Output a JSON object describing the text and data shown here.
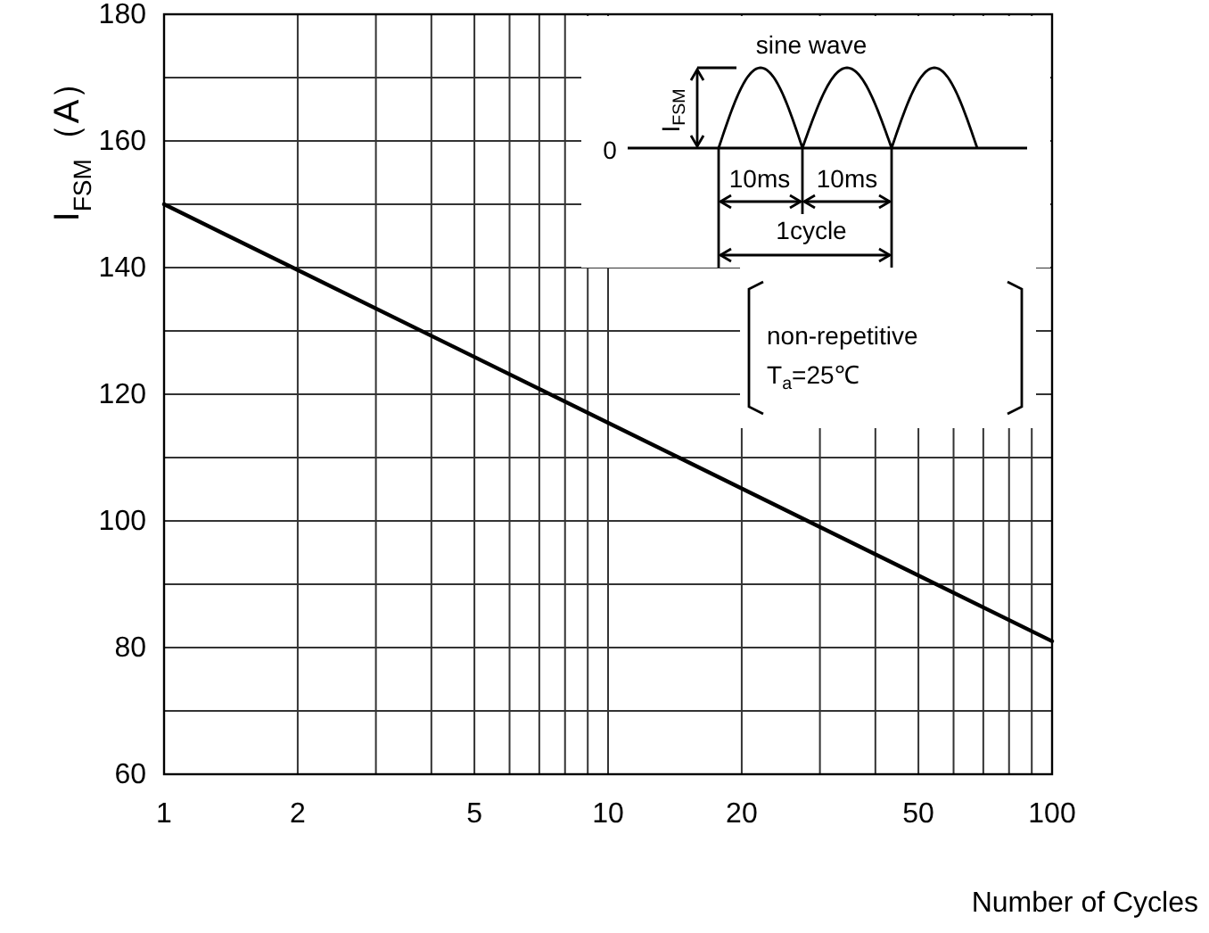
{
  "chart_data": {
    "type": "line",
    "xlabel": "Number of Cycles",
    "ylabel": "I$_{FSM}$（A）",
    "series": [
      {
        "color": "#000000",
        "x": [
          1,
          2,
          10,
          100
        ],
        "values": [
          150,
          139.6,
          115.5,
          81
        ]
      }
    ],
    "log": "x",
    "xlim": [
      1,
      100
    ],
    "ylim": [
      60,
      180
    ],
    "xticks": [
      1,
      2,
      {
        "value": 3,
        "label": null
      },
      {
        "value": 4,
        "label": null
      },
      5,
      {
        "value": 6,
        "label": null
      },
      {
        "value": 7,
        "label": null
      },
      {
        "value": 8,
        "label": null
      },
      {
        "value": 9,
        "label": null
      },
      10,
      20,
      {
        "value": 30,
        "label": null
      },
      {
        "value": 40,
        "label": null
      },
      50,
      {
        "value": 60,
        "label": null
      },
      {
        "value": 70,
        "label": null
      },
      {
        "value": 80,
        "label": null
      },
      {
        "value": 90,
        "label": null
      },
      100
    ],
    "yticks": [
      60,
      {
        "value": 70,
        "label": null
      },
      80,
      {
        "value": 90,
        "label": null
      },
      100,
      {
        "value": 110,
        "label": null
      },
      120,
      {
        "value": 130,
        "label": null
      },
      140,
      {
        "value": 150,
        "label": null
      },
      160,
      {
        "value": 170,
        "label": null
      },
      180
    ],
    "grid": true,
    "annotations": [
      "sine wave",
      "I$_{FSM}$",
      "0",
      "10ms",
      "10ms",
      "1cycle",
      "non-repetitive",
      "T$_{a}$=25℃"
    ]
  }
}
